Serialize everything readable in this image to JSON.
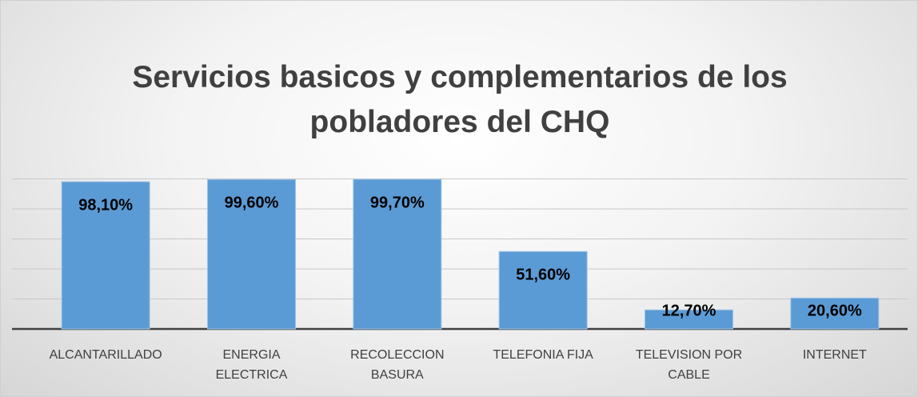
{
  "chart_data": {
    "type": "bar",
    "title": "Servicios basicos y complementarios de los pobladores del CHQ",
    "categories": [
      "ALCANTARILLADO",
      "ENERGIA ELECTRICA",
      "RECOLECCION BASURA",
      "TELEFONIA FIJA",
      "TELEVISION POR CABLE",
      "INTERNET"
    ],
    "values": [
      98.1,
      99.6,
      99.7,
      51.6,
      12.7,
      20.6
    ],
    "value_labels": [
      "98,10%",
      "99,60%",
      "99,70%",
      "51,60%",
      "12,70%",
      "20,60%"
    ],
    "color": "#5b9bd5",
    "ylim": [
      0,
      100
    ],
    "yticks": [
      0,
      20,
      40,
      60,
      80,
      100
    ],
    "grid": true
  }
}
